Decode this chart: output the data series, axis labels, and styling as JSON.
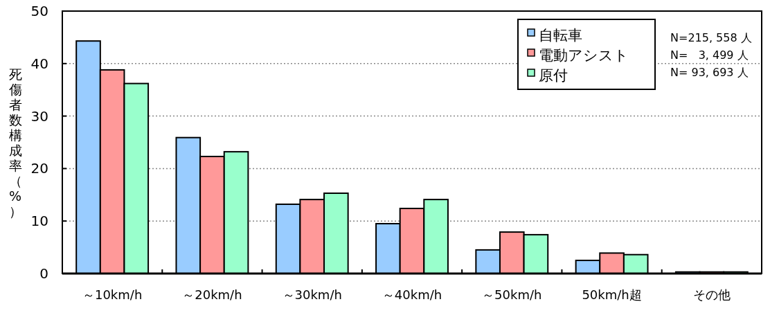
{
  "chart_data": {
    "type": "bar",
    "ylabel": "死傷者数構成率（%）",
    "categories": [
      "～10km/h",
      "～20km/h",
      "～30km/h",
      "～40km/h",
      "～50km/h",
      "50km/h超",
      "その他"
    ],
    "series": [
      {
        "name": "自転車",
        "color": "#99ccff",
        "values": [
          44.3,
          25.9,
          13.2,
          9.5,
          4.5,
          2.5,
          0.3
        ]
      },
      {
        "name": "電動アシスト",
        "color": "#ff9999",
        "values": [
          38.8,
          22.3,
          14.1,
          12.4,
          7.9,
          3.9,
          0.3
        ]
      },
      {
        "name": "原付",
        "color": "#99ffcc",
        "values": [
          36.2,
          23.2,
          15.3,
          14.1,
          7.4,
          3.6,
          0.3
        ]
      }
    ],
    "ylim": [
      0,
      50
    ],
    "yticks": [
      0,
      10,
      20,
      30,
      40,
      50
    ],
    "grid": "y",
    "legend": "top right",
    "annotations": [
      "N=215, 558 人",
      "N=   3, 499 人",
      "N= 93, 693 人"
    ]
  }
}
